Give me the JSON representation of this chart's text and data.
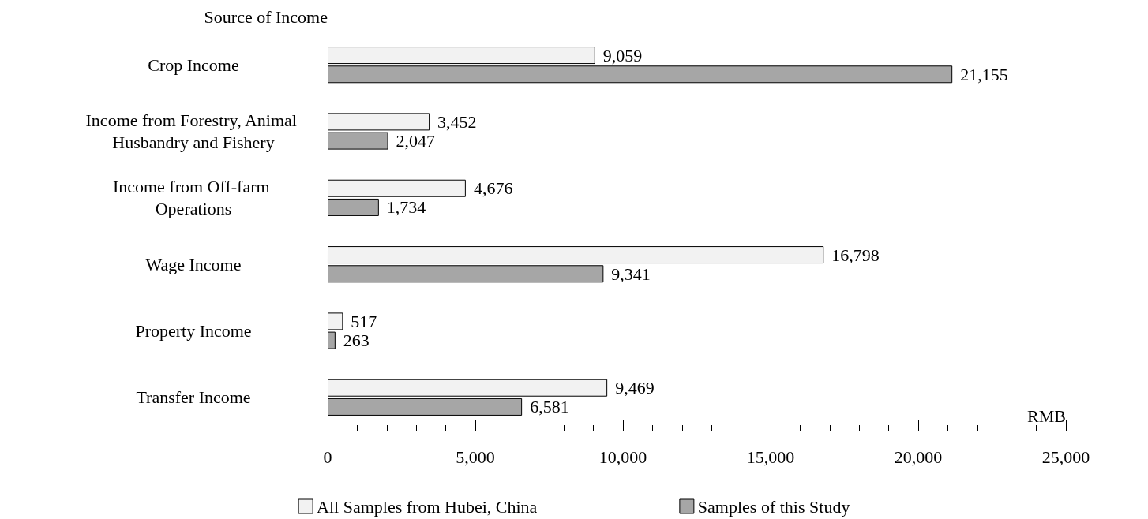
{
  "chart_data": {
    "type": "bar",
    "orientation": "horizontal",
    "ylabel": "Source of Income",
    "xlabel": "RMB",
    "categories": [
      "Crop Income",
      "Income from Forestry, Animal Husbandry and Fishery",
      "Income from Off-farm Operations",
      "Wage Income",
      "Property Income",
      "Transfer Income"
    ],
    "series": [
      {
        "name": "All Samples from Hubei, China",
        "color": "#f2f2f2",
        "values": [
          9059,
          3452,
          4676,
          16798,
          517,
          9469
        ],
        "value_labels": [
          "9,059",
          "3,452",
          "4,676",
          "16,798",
          "517",
          "9,469"
        ]
      },
      {
        "name": "Samples of this Study",
        "color": "#a6a6a6",
        "values": [
          21155,
          2047,
          1734,
          9341,
          263,
          6581
        ],
        "value_labels": [
          "21,155",
          "2,047",
          "1,734",
          "9,341",
          "263",
          "6,581"
        ]
      }
    ],
    "xlim": [
      0,
      25000
    ],
    "xticks": [
      0,
      {
        "value": 5000,
        "label": "5,000"
      },
      {
        "value": 10000,
        "label": "10,000"
      },
      {
        "value": 15000,
        "label": "15,000"
      },
      {
        "value": 20000,
        "label": "20,000"
      },
      {
        "value": 25000,
        "label": "25,000"
      }
    ],
    "grid": false,
    "legend": "bottom"
  }
}
